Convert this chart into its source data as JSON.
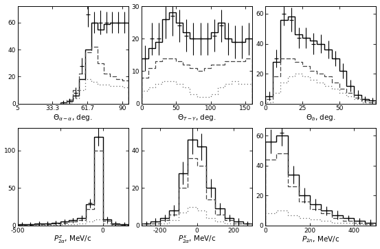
{
  "panels": [
    {
      "xlabel": "$\\Theta_{\\alpha-\\alpha}$, deg.",
      "xlim": [
        5,
        95
      ],
      "ylim": [
        0,
        72
      ],
      "xticks": [
        5,
        33.3,
        61.7,
        90
      ],
      "xticklabels": [
        "5",
        "33.3",
        "61.7",
        "90"
      ],
      "yticks": [
        0,
        20,
        40,
        60
      ],
      "bin_width": 5,
      "solid_edges": [
        40,
        45,
        50,
        55,
        60,
        65,
        70,
        75,
        80,
        85,
        90,
        95
      ],
      "solid_y": [
        1,
        2,
        6,
        18,
        40,
        60,
        55,
        59,
        60,
        60,
        60
      ],
      "dash_edges": [
        40,
        45,
        50,
        55,
        60,
        65,
        70,
        75,
        80,
        85,
        90,
        95
      ],
      "dash_y": [
        1,
        3,
        10,
        22,
        38,
        42,
        30,
        22,
        20,
        18,
        17
      ],
      "dot_edges": [
        40,
        45,
        50,
        55,
        60,
        65,
        70,
        75,
        80,
        85,
        90,
        95
      ],
      "dot_y": [
        0,
        1,
        4,
        10,
        18,
        16,
        14,
        14,
        13,
        13,
        12
      ],
      "data_x": [
        42,
        47,
        52,
        57,
        62,
        67,
        72,
        77,
        82,
        87,
        92
      ],
      "data_y": [
        1,
        2,
        8,
        28,
        66,
        60,
        60,
        60,
        60,
        60,
        60
      ],
      "data_yerr": [
        1,
        2,
        4,
        6,
        9,
        8,
        9,
        8,
        8,
        8,
        8
      ]
    },
    {
      "xlabel": "$\\Theta_{T-Y}$, deg.",
      "xlim": [
        0,
        160
      ],
      "ylim": [
        0,
        30
      ],
      "xticks": [
        0,
        50,
        100,
        150
      ],
      "xticklabels": [
        "0",
        "50",
        "100",
        "150"
      ],
      "yticks": [
        0,
        10,
        20,
        30
      ],
      "bin_width": 10,
      "solid_edges": [
        0,
        10,
        20,
        30,
        40,
        50,
        60,
        70,
        80,
        90,
        100,
        110,
        120,
        130,
        140,
        150,
        160
      ],
      "solid_y": [
        14,
        17,
        19,
        26,
        28,
        25,
        22,
        20,
        20,
        20,
        22,
        25,
        20,
        19,
        19,
        20
      ],
      "dash_edges": [
        0,
        10,
        20,
        30,
        40,
        50,
        60,
        70,
        80,
        90,
        100,
        110,
        120,
        130,
        140,
        150,
        160
      ],
      "dash_y": [
        8,
        11,
        13,
        14,
        14,
        13,
        12,
        11,
        10,
        11,
        12,
        12,
        13,
        13,
        13,
        14
      ],
      "dot_edges": [
        0,
        10,
        20,
        30,
        40,
        50,
        60,
        70,
        80,
        90,
        100,
        110,
        120,
        130,
        140,
        150,
        160
      ],
      "dot_y": [
        4,
        5,
        6,
        7,
        7,
        6,
        5,
        3,
        2,
        2,
        3,
        5,
        6,
        7,
        6,
        6
      ],
      "data_x": [
        5,
        15,
        25,
        35,
        45,
        55,
        65,
        75,
        85,
        95,
        105,
        115,
        125,
        135,
        145,
        155
      ],
      "data_y": [
        14,
        20,
        20,
        26,
        27,
        24,
        21,
        20,
        20,
        20,
        21,
        24,
        20,
        19,
        19,
        20
      ],
      "data_yerr": [
        4,
        5,
        5,
        6,
        6,
        5,
        5,
        5,
        5,
        5,
        5,
        5,
        5,
        5,
        5,
        5
      ]
    },
    {
      "xlabel": "$\\Theta_{b}$, deg.",
      "xlim": [
        0,
        75
      ],
      "ylim": [
        0,
        65
      ],
      "xticks": [
        0,
        25,
        50
      ],
      "xticklabels": [
        "0",
        "25",
        "50"
      ],
      "yticks": [
        0,
        20,
        40,
        60
      ],
      "bin_width": 5,
      "solid_edges": [
        0,
        5,
        10,
        15,
        20,
        25,
        30,
        35,
        40,
        45,
        50,
        55,
        60,
        65,
        70,
        75
      ],
      "solid_y": [
        5,
        28,
        56,
        58,
        46,
        44,
        42,
        40,
        36,
        30,
        22,
        12,
        6,
        3,
        2
      ],
      "dash_edges": [
        0,
        5,
        10,
        15,
        20,
        25,
        30,
        35,
        40,
        45,
        50,
        55,
        60,
        65,
        70,
        75
      ],
      "dash_y": [
        3,
        18,
        30,
        30,
        28,
        25,
        22,
        20,
        18,
        14,
        10,
        7,
        4,
        2,
        1
      ],
      "dot_edges": [
        0,
        5,
        10,
        15,
        20,
        25,
        30,
        35,
        40,
        45,
        50,
        55,
        60,
        65,
        70,
        75
      ],
      "dot_y": [
        1,
        7,
        14,
        18,
        20,
        18,
        16,
        14,
        12,
        10,
        7,
        5,
        3,
        1,
        1
      ],
      "data_x": [
        2.5,
        7.5,
        12.5,
        17.5,
        22.5,
        27.5,
        32.5,
        37.5,
        42.5,
        47.5,
        52.5,
        57.5,
        62.5,
        67.5,
        72.5
      ],
      "data_y": [
        5,
        30,
        60,
        56,
        44,
        44,
        40,
        40,
        36,
        30,
        22,
        12,
        6,
        3,
        2
      ],
      "data_yerr": [
        3,
        6,
        8,
        8,
        7,
        7,
        7,
        6,
        6,
        5,
        5,
        4,
        3,
        2,
        2
      ]
    },
    {
      "xlabel": "$P_{2\\alpha}^{z}$, MeV/c",
      "xlim": [
        -500,
        150
      ],
      "ylim": [
        0,
        130
      ],
      "xticks": [
        -500,
        -250,
        0
      ],
      "xticklabels": [
        "-500",
        "",
        "0"
      ],
      "yticks": [
        0,
        50,
        100
      ],
      "bin_width": 50,
      "solid_edges": [
        -500,
        -450,
        -400,
        -350,
        -300,
        -250,
        -200,
        -150,
        -100,
        -50,
        0,
        50,
        100,
        150
      ],
      "solid_y": [
        2,
        2,
        3,
        3,
        4,
        5,
        7,
        10,
        28,
        118,
        8,
        3,
        2
      ],
      "dash_edges": [
        -500,
        -450,
        -400,
        -350,
        -300,
        -250,
        -200,
        -150,
        -100,
        -50,
        0,
        50,
        100,
        150
      ],
      "dash_y": [
        1,
        1,
        2,
        2,
        3,
        4,
        5,
        7,
        22,
        100,
        6,
        2,
        1
      ],
      "dot_edges": [
        -500,
        -450,
        -400,
        -350,
        -300,
        -250,
        -200,
        -150,
        -100,
        -50,
        0,
        50,
        100,
        150
      ],
      "dot_y": [
        1,
        1,
        1,
        1,
        1,
        2,
        2,
        3,
        5,
        8,
        3,
        1,
        1
      ],
      "data_x": [
        -475,
        -425,
        -375,
        -325,
        -275,
        -225,
        -175,
        -125,
        -75,
        -25,
        25,
        75,
        125
      ],
      "data_y": [
        2,
        2,
        3,
        3,
        4,
        5,
        7,
        10,
        30,
        118,
        8,
        3,
        2
      ],
      "data_yerr": [
        1,
        1,
        2,
        2,
        2,
        3,
        3,
        4,
        6,
        12,
        4,
        2,
        2
      ]
    },
    {
      "xlabel": "$P_{2\\alpha}^{x}$, MeV/c",
      "xlim": [
        -300,
        300
      ],
      "ylim": [
        0,
        52
      ],
      "xticks": [
        -200,
        0,
        200
      ],
      "xticklabels": [
        "-200",
        "0",
        "200"
      ],
      "yticks": [
        0,
        20,
        40
      ],
      "bin_width": 50,
      "solid_edges": [
        -300,
        -250,
        -200,
        -150,
        -100,
        -50,
        0,
        50,
        100,
        150,
        200,
        250,
        300
      ],
      "solid_y": [
        1,
        2,
        4,
        8,
        28,
        46,
        42,
        20,
        9,
        4,
        2,
        1
      ],
      "dash_edges": [
        -300,
        -250,
        -200,
        -150,
        -100,
        -50,
        0,
        50,
        100,
        150,
        200,
        250,
        300
      ],
      "dash_y": [
        1,
        1,
        3,
        6,
        20,
        36,
        32,
        14,
        6,
        3,
        1,
        1
      ],
      "dot_edges": [
        -300,
        -250,
        -200,
        -150,
        -100,
        -50,
        0,
        50,
        100,
        150,
        200,
        250,
        300
      ],
      "dot_y": [
        0,
        1,
        1,
        3,
        7,
        10,
        8,
        4,
        2,
        1,
        1,
        0
      ],
      "data_x": [
        -275,
        -225,
        -175,
        -125,
        -75,
        -25,
        25,
        75,
        125,
        175,
        225,
        275
      ],
      "data_y": [
        1,
        2,
        4,
        8,
        28,
        46,
        42,
        20,
        9,
        4,
        2,
        1
      ],
      "data_yerr": [
        1,
        2,
        2,
        3,
        6,
        8,
        7,
        5,
        3,
        2,
        2,
        1
      ]
    },
    {
      "xlabel": "$P_{2n}$, MeV/c",
      "xlim": [
        0,
        500
      ],
      "ylim": [
        0,
        65
      ],
      "xticks": [
        0,
        200,
        400
      ],
      "xticklabels": [
        "0",
        "200",
        "400"
      ],
      "yticks": [
        0,
        20,
        40,
        60
      ],
      "bin_width": 50,
      "solid_edges": [
        0,
        50,
        100,
        150,
        200,
        250,
        300,
        350,
        400,
        450,
        500
      ],
      "solid_y": [
        56,
        60,
        34,
        20,
        14,
        10,
        7,
        5,
        3,
        2
      ],
      "dash_edges": [
        0,
        50,
        100,
        150,
        200,
        250,
        300,
        350,
        400,
        450,
        500
      ],
      "dash_y": [
        44,
        48,
        26,
        16,
        11,
        8,
        5,
        3,
        2,
        1
      ],
      "dot_edges": [
        0,
        50,
        100,
        150,
        200,
        250,
        300,
        350,
        400,
        450,
        500
      ],
      "dot_y": [
        8,
        10,
        7,
        5,
        4,
        3,
        2,
        2,
        1,
        1
      ],
      "data_x": [
        25,
        75,
        125,
        175,
        225,
        275,
        325,
        375,
        425,
        475
      ],
      "data_y": [
        56,
        62,
        34,
        20,
        14,
        10,
        7,
        5,
        3,
        2
      ],
      "data_yerr": [
        8,
        9,
        6,
        5,
        4,
        3,
        3,
        2,
        2,
        2
      ]
    }
  ],
  "solid_color": "#000000",
  "dash_color": "#444444",
  "dot_color": "#666666",
  "data_color": "#000000",
  "background": "#ffffff"
}
